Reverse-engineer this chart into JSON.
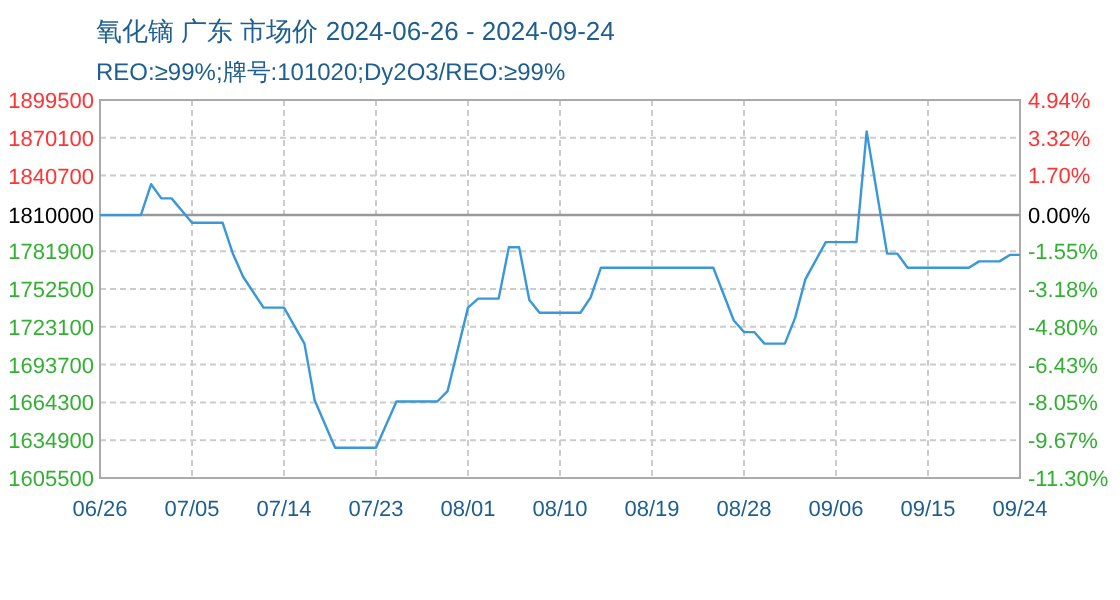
{
  "chart_data": {
    "type": "line",
    "title": "氧化镝 广东 市场价 2024-06-26 - 2024-09-24",
    "subtitle": "REO:≥99%;牌号:101020;Dy2O3/REO:≥99%",
    "x": [
      "2024-06-26",
      "2024-06-30",
      "2024-07-01",
      "2024-07-02",
      "2024-07-03",
      "2024-07-05",
      "2024-07-08",
      "2024-07-09",
      "2024-07-10",
      "2024-07-12",
      "2024-07-14",
      "2024-07-16",
      "2024-07-17",
      "2024-07-19",
      "2024-07-23",
      "2024-07-25",
      "2024-07-29",
      "2024-07-30",
      "2024-08-01",
      "2024-08-02",
      "2024-08-04",
      "2024-08-05",
      "2024-08-06",
      "2024-08-07",
      "2024-08-08",
      "2024-08-12",
      "2024-08-13",
      "2024-08-14",
      "2024-08-25",
      "2024-08-27",
      "2024-08-28",
      "2024-08-29",
      "2024-08-30",
      "2024-09-01",
      "2024-09-02",
      "2024-09-03",
      "2024-09-05",
      "2024-09-08",
      "2024-09-09",
      "2024-09-11",
      "2024-09-12",
      "2024-09-13",
      "2024-09-19",
      "2024-09-20",
      "2024-09-22",
      "2024-09-23",
      "2024-09-24"
    ],
    "series": [
      {
        "color": "#3a97d8",
        "values": [
          1810000,
          1810000,
          1834000,
          1823000,
          1823000,
          1804000,
          1804000,
          1780000,
          1762000,
          1738000,
          1738000,
          1710000,
          1666000,
          1629000,
          1629000,
          1665000,
          1665000,
          1673000,
          1738000,
          1745000,
          1745000,
          1785000,
          1785000,
          1744000,
          1734000,
          1734000,
          1746000,
          1769000,
          1769000,
          1728000,
          1719000,
          1719000,
          1710000,
          1710000,
          1730000,
          1760000,
          1789000,
          1789000,
          1875000,
          1780000,
          1780000,
          1769000,
          1769000,
          1774000,
          1774000,
          1779000,
          1779000
        ]
      }
    ],
    "xlim": [
      "2024-06-26",
      "2024-09-24"
    ],
    "xticks": [
      {
        "value": "2024-06-26",
        "label": "06/26"
      },
      {
        "value": "2024-07-05",
        "label": "07/05"
      },
      {
        "value": "2024-07-14",
        "label": "07/14"
      },
      {
        "value": "2024-07-23",
        "label": "07/23"
      },
      {
        "value": "2024-08-01",
        "label": "08/01"
      },
      {
        "value": "2024-08-10",
        "label": "08/10"
      },
      {
        "value": "2024-08-19",
        "label": "08/19"
      },
      {
        "value": "2024-08-28",
        "label": "08/28"
      },
      {
        "value": "2024-09-06",
        "label": "09/06"
      },
      {
        "value": "2024-09-15",
        "label": "09/15"
      },
      {
        "value": "2024-09-24",
        "label": "09/24"
      }
    ],
    "ylim": [
      1605500,
      1899500
    ],
    "yticks": [
      1605500,
      1634900,
      1664300,
      1693700,
      1723100,
      1752500,
      1781900,
      1810000,
      1840700,
      1870100,
      1899500
    ],
    "y2lim": [
      -11.3,
      4.94
    ],
    "y2ticks": [
      {
        "value": -11.3,
        "label": "-11.30%"
      },
      {
        "value": -9.67,
        "label": "-9.67%"
      },
      {
        "value": -8.05,
        "label": "-8.05%"
      },
      {
        "value": -6.43,
        "label": "-6.43%"
      },
      {
        "value": -4.8,
        "label": "-4.80%"
      },
      {
        "value": -3.18,
        "label": "-3.18%"
      },
      {
        "value": -1.55,
        "label": "-1.55%"
      },
      {
        "value": 0,
        "label": "0.00%"
      },
      {
        "value": 1.7,
        "label": "1.70%"
      },
      {
        "value": 3.32,
        "label": "3.32%"
      },
      {
        "value": 4.94,
        "label": "4.94%"
      }
    ],
    "ref_lines": [
      {
        "axis": "y",
        "value": 1810000,
        "color": "#999999"
      }
    ],
    "grid": true,
    "marker": "none",
    "line_style": "solid"
  }
}
